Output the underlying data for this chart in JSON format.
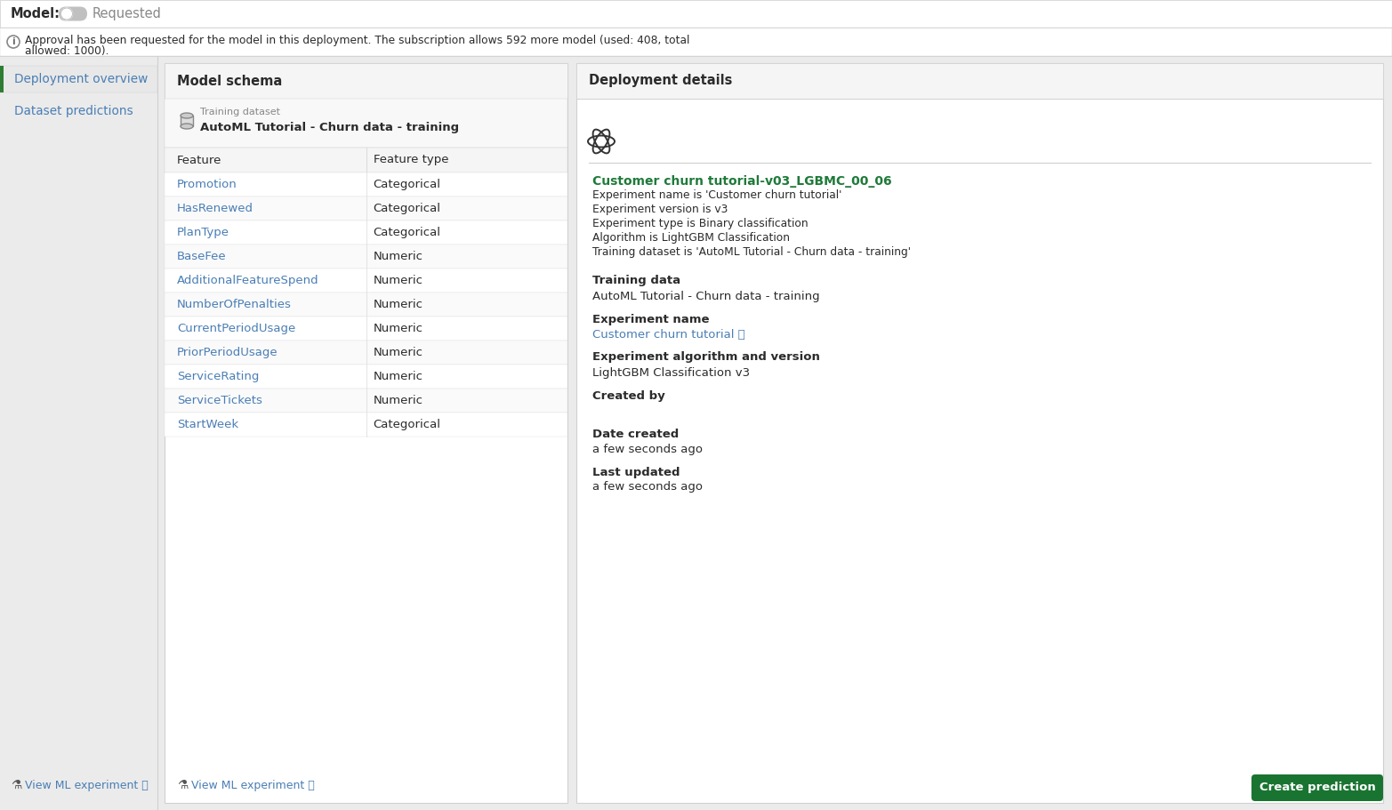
{
  "bg_color": "#ebebeb",
  "white": "#ffffff",
  "header_bg": "#ffffff",
  "panel_border": "#d0d0d0",
  "text_dark": "#2b2b2b",
  "text_medium": "#555555",
  "text_light": "#888888",
  "green_text": "#1f7a3a",
  "blue_link": "#4a7eb5",
  "sidebar_active_bg": "#e8e8e8",
  "sidebar_active_border": "#2e7d32",
  "toggle_bg": "#c0c0c0",
  "toggle_knob": "#ffffff",
  "requested_color": "#888888",
  "info_bg": "#ffffff",
  "table_header_bg": "#f5f5f5",
  "row_alt_bg": "#fafafa",
  "divider": "#e0e0e0",
  "btn_bg": "#1a7431",
  "btn_text_color": "#ffffff",
  "model_label": "Model:",
  "requested_label": "Requested",
  "info_line1": "Approval has been requested for the model in this deployment. The subscription allows 592 more model (used: 408, total",
  "info_line2": "allowed: 1000).",
  "nav1": "Deployment overview",
  "nav2": "Dataset predictions",
  "schema_title": "Model schema",
  "train_label": "Training dataset",
  "train_value": "AutoML Tutorial - Churn data - training",
  "col1": "Feature",
  "col2": "Feature type",
  "features": [
    [
      "Promotion",
      "Categorical"
    ],
    [
      "HasRenewed",
      "Categorical"
    ],
    [
      "PlanType",
      "Categorical"
    ],
    [
      "BaseFee",
      "Numeric"
    ],
    [
      "AdditionalFeatureSpend",
      "Numeric"
    ],
    [
      "NumberOfPenalties",
      "Numeric"
    ],
    [
      "CurrentPeriodUsage",
      "Numeric"
    ],
    [
      "PriorPeriodUsage",
      "Numeric"
    ],
    [
      "ServiceRating",
      "Numeric"
    ],
    [
      "ServiceTickets",
      "Numeric"
    ],
    [
      "StartWeek",
      "Categorical"
    ]
  ],
  "view_ml": "View ML experiment",
  "details_title": "Deployment details",
  "model_name": "Customer churn tutorial-v03_LGBMC_00_06",
  "detail_lines": [
    "Experiment name is 'Customer churn tutorial'",
    "Experiment version is v3",
    "Experiment type is Binary classification",
    "Algorithm is LightGBM Classification",
    "Training dataset is 'AutoML Tutorial - Churn data - training'"
  ],
  "sections": [
    [
      "Training data",
      "AutoML Tutorial - Churn data - training",
      false
    ],
    [
      "Experiment name",
      "Customer churn tutorial",
      true
    ],
    [
      "Experiment algorithm and version",
      "LightGBM Classification v3",
      false
    ],
    [
      "Created by",
      "",
      false
    ],
    [
      "Date created",
      "a few seconds ago",
      false
    ],
    [
      "Last updated",
      "a few seconds ago",
      false
    ]
  ],
  "btn_label": "Create prediction"
}
